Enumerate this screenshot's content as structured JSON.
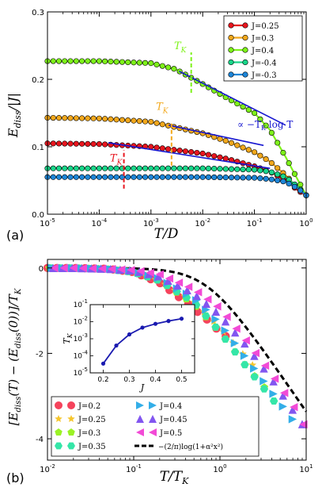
{
  "chart_data": [
    {
      "panel": "(a)",
      "type": "line",
      "xlabel": "T/D",
      "ylabel": "E_diss/|J|",
      "xscale": "log",
      "xlim": [
        1e-05,
        1
      ],
      "ylim": [
        0,
        0.3
      ],
      "x_ticks": [
        "10-5",
        "10-4",
        "10-3",
        "10-2",
        "10-1",
        "100"
      ],
      "y_ticks": [
        "0.0",
        "0.1",
        "0.2",
        "0.3"
      ],
      "legend_position": "top-right",
      "series": [
        {
          "name": "J=0.25",
          "color": "#e8161f",
          "x": [
            1e-05,
            0.0001,
            0.001,
            0.01,
            0.03,
            0.1,
            0.2,
            0.4,
            0.7,
            1.0
          ],
          "y": [
            0.105,
            0.104,
            0.1,
            0.09,
            0.082,
            0.071,
            0.063,
            0.05,
            0.035,
            0.028
          ]
        },
        {
          "name": "J=0.3",
          "color": "#f2a81c",
          "x": [
            1e-05,
            0.0001,
            0.001,
            0.01,
            0.03,
            0.1,
            0.2,
            0.4,
            0.7,
            1.0
          ],
          "y": [
            0.143,
            0.142,
            0.137,
            0.12,
            0.108,
            0.092,
            0.078,
            0.058,
            0.038,
            0.028
          ]
        },
        {
          "name": "J=0.4",
          "color": "#7ef21a",
          "x": [
            1e-05,
            0.0001,
            0.001,
            0.003,
            0.01,
            0.03,
            0.1,
            0.2,
            0.4,
            0.7,
            1.0
          ],
          "y": [
            0.227,
            0.227,
            0.224,
            0.215,
            0.193,
            0.172,
            0.15,
            0.125,
            0.085,
            0.05,
            0.028
          ]
        },
        {
          "name": "J=-0.4",
          "color": "#19d68a",
          "x": [
            1e-05,
            0.0001,
            0.001,
            0.01,
            0.1,
            0.2,
            0.4,
            0.7,
            1.0
          ],
          "y": [
            0.068,
            0.068,
            0.068,
            0.068,
            0.066,
            0.063,
            0.055,
            0.04,
            0.028
          ]
        },
        {
          "name": "J=-0.3",
          "color": "#1e86d8",
          "x": [
            1e-05,
            0.0001,
            0.001,
            0.01,
            0.1,
            0.2,
            0.4,
            0.7,
            1.0
          ],
          "y": [
            0.055,
            0.055,
            0.055,
            0.055,
            0.054,
            0.052,
            0.048,
            0.038,
            0.028
          ]
        }
      ],
      "annotations": [
        {
          "text": "T_K",
          "color": "#e8161f",
          "x": 0.0003
        },
        {
          "text": "T_K",
          "color": "#f2a81c",
          "x": 0.0025
        },
        {
          "text": "T_K",
          "color": "#7ef21a",
          "x": 0.006
        },
        {
          "text": "∝ −T_K log T",
          "color": "#1616d0"
        }
      ],
      "fit_lines": [
        {
          "x": [
            0.00015,
            0.2
          ],
          "y": [
            0.106,
            0.068
          ]
        },
        {
          "x": [
            0.0022,
            0.15
          ],
          "y": [
            0.132,
            0.102
          ]
        },
        {
          "x": [
            0.0035,
            0.4
          ],
          "y": [
            0.212,
            0.132
          ]
        }
      ]
    },
    {
      "panel": "(b)",
      "type": "scatter",
      "xlabel": "T/T_K",
      "ylabel": "[E_diss(T) − (E_diss(0))]/T_K",
      "xscale": "log",
      "xlim": [
        0.01,
        10
      ],
      "ylim": [
        -4.5,
        0.2
      ],
      "x_ticks": [
        "10-2",
        "10-1",
        "100",
        "101"
      ],
      "y_ticks": [
        "0",
        "-2",
        "-4"
      ],
      "legend_position": "bottom-left",
      "series": [
        {
          "name": "J=0.2",
          "marker": "circle",
          "color": "#f5435c",
          "x": [
            0.01,
            0.02,
            0.05,
            0.1,
            0.2,
            0.4,
            0.7,
            1,
            1.5
          ],
          "y": [
            0,
            0,
            -0.02,
            -0.1,
            -0.35,
            -0.8,
            -1.2,
            -1.5,
            -1.75
          ]
        },
        {
          "name": "J=0.25",
          "marker": "star",
          "color": "#f6c62d",
          "x": [
            0.01,
            0.02,
            0.05,
            0.1,
            0.2,
            0.5,
            1,
            2,
            3
          ],
          "y": [
            0,
            0,
            -0.03,
            -0.1,
            -0.3,
            -0.8,
            -1.4,
            -2.1,
            -2.5
          ]
        },
        {
          "name": "J=0.3",
          "marker": "pentagon",
          "color": "#9bf226",
          "x": [
            0.01,
            0.02,
            0.05,
            0.1,
            0.2,
            0.5,
            1,
            2,
            4
          ],
          "y": [
            0,
            0,
            -0.03,
            -0.1,
            -0.3,
            -0.85,
            -1.5,
            -2.3,
            -3
          ]
        },
        {
          "name": "J=0.35",
          "marker": "hexagon",
          "color": "#35e6a8",
          "x": [
            0.01,
            0.02,
            0.05,
            0.1,
            0.2,
            0.5,
            1,
            2,
            5
          ],
          "y": [
            0,
            0,
            -0.03,
            -0.1,
            -0.3,
            -0.8,
            -1.5,
            -2.3,
            -3.3
          ]
        },
        {
          "name": "J=0.4",
          "marker": "triangle-right",
          "color": "#33aee8",
          "x": [
            0.01,
            0.02,
            0.05,
            0.1,
            0.2,
            0.5,
            1,
            2,
            4,
            8
          ],
          "y": [
            0,
            0,
            -0.02,
            -0.08,
            -0.25,
            -0.7,
            -1.3,
            -2.1,
            -2.9,
            -3.7
          ]
        },
        {
          "name": "J=0.45",
          "marker": "triangle-up",
          "color": "#8256f0",
          "x": [
            0.01,
            0.02,
            0.05,
            0.1,
            0.2,
            0.5,
            1,
            2,
            4,
            8,
            10
          ],
          "y": [
            0,
            0,
            -0.02,
            -0.06,
            -0.2,
            -0.6,
            -1.1,
            -1.8,
            -2.6,
            -3.5,
            -3.8
          ]
        },
        {
          "name": "J=0.5",
          "marker": "triangle-left",
          "color": "#f24ad6",
          "x": [
            0.01,
            0.02,
            0.05,
            0.1,
            0.2,
            0.5,
            1,
            2,
            4,
            8,
            10
          ],
          "y": [
            0,
            0,
            -0.02,
            -0.05,
            -0.15,
            -0.5,
            -0.95,
            -1.7,
            -2.5,
            -3.4,
            -3.8
          ]
        }
      ],
      "theory": {
        "name": "−(2/π)log(1+α²x²)",
        "color": "#000000",
        "style": "dashed"
      },
      "inset": {
        "type": "line",
        "xlabel": "J",
        "ylabel": "T_K",
        "yscale": "log",
        "xlim": [
          0.15,
          0.55
        ],
        "ylim": [
          1e-05,
          0.1
        ],
        "x_ticks": [
          "0.2",
          "0.3",
          "0.4",
          "0.5"
        ],
        "y_ticks": [
          "10-5",
          "10-4",
          "10-3",
          "10-2",
          "10-1"
        ],
        "color": "#1a1ab0",
        "x": [
          0.2,
          0.25,
          0.3,
          0.35,
          0.4,
          0.45,
          0.5
        ],
        "y": [
          3.5e-05,
          0.0004,
          0.0018,
          0.0045,
          0.0075,
          0.011,
          0.015
        ]
      }
    }
  ]
}
